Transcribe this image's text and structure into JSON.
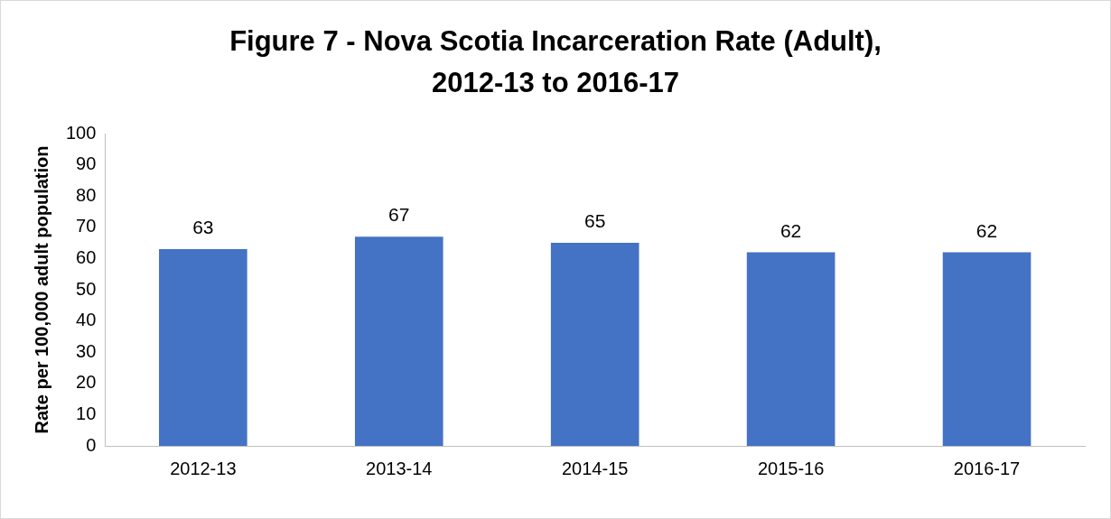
{
  "chart_data": {
    "type": "bar",
    "title": "Figure 7 - Nova Scotia Incarceration Rate (Adult),\n2012-13 to 2016-17",
    "ylabel": "Rate per 100,000 adult population",
    "categories": [
      "2012-13",
      "2013-14",
      "2014-15",
      "2015-16",
      "2016-17"
    ],
    "values": [
      63,
      67,
      65,
      62,
      62
    ],
    "color": "#4472c4",
    "ylim": [
      0,
      100
    ],
    "yticks": [
      0,
      10,
      20,
      30,
      40,
      50,
      60,
      70,
      80,
      90,
      100
    ],
    "grid": false,
    "legend": false,
    "data_labels": true
  }
}
